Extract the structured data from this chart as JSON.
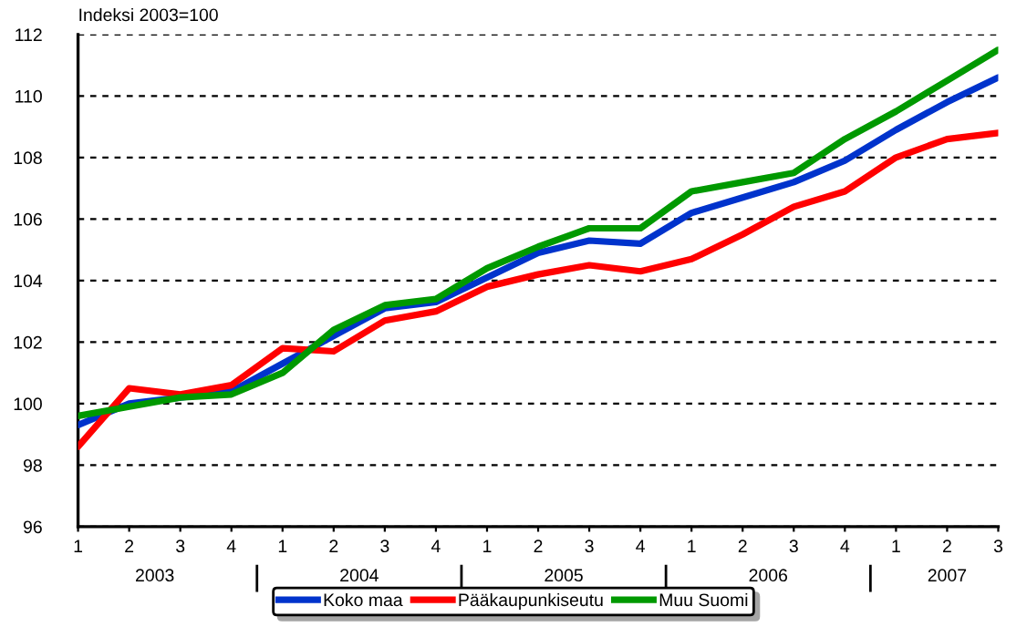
{
  "chart_data": {
    "type": "line",
    "title": "Indeksi 2003=100",
    "categories": [
      "1",
      "2",
      "3",
      "4",
      "1",
      "2",
      "3",
      "4",
      "1",
      "2",
      "3",
      "4",
      "1",
      "2",
      "3",
      "4",
      "1",
      "2",
      "3"
    ],
    "series": [
      {
        "name": "Koko maa",
        "color": "#0033cc",
        "values": [
          99.3,
          100.0,
          100.2,
          100.4,
          101.3,
          102.2,
          103.1,
          103.3,
          104.1,
          104.9,
          105.3,
          105.2,
          106.2,
          106.7,
          107.2,
          107.9,
          108.9,
          109.8,
          110.6
        ]
      },
      {
        "name": "Pääkaupunkiseutu",
        "color": "#ff0000",
        "values": [
          98.6,
          100.5,
          100.3,
          100.6,
          101.8,
          101.7,
          102.7,
          103.0,
          103.8,
          104.2,
          104.5,
          104.3,
          104.7,
          105.5,
          106.4,
          106.9,
          108.0,
          108.6,
          108.8
        ]
      },
      {
        "name": "Muu Suomi",
        "color": "#009900",
        "values": [
          99.6,
          99.9,
          100.2,
          100.3,
          101.0,
          102.4,
          103.2,
          103.4,
          104.4,
          105.1,
          105.7,
          105.7,
          106.9,
          107.2,
          107.5,
          108.6,
          109.5,
          110.5,
          111.5
        ]
      }
    ],
    "annotations": [
      "2003",
      "2004",
      "2005",
      "2006",
      "2007"
    ],
    "ylim": [
      96,
      112
    ],
    "yticks": [
      96,
      98,
      100,
      102,
      104,
      106,
      108,
      110,
      112
    ],
    "grid": "y",
    "legend": "bottom",
    "marker": "none",
    "line_style": "solid"
  }
}
